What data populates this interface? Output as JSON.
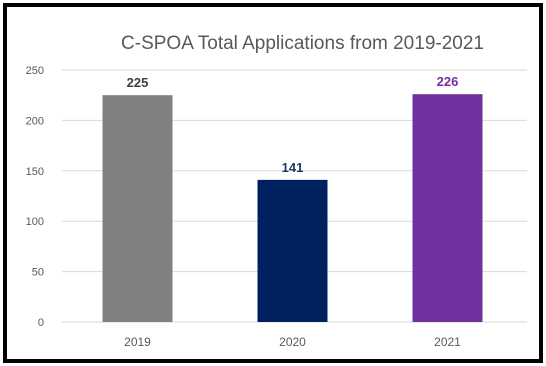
{
  "colors": {
    "frame": "#000000",
    "grid": "#d9d9d9",
    "text": "#595959"
  },
  "chart_data": {
    "type": "bar",
    "title": "C-SPOA Total Applications from 2019-2021",
    "xlabel": "",
    "ylabel": "",
    "categories": [
      "2019",
      "2020",
      "2021"
    ],
    "values": [
      225,
      141,
      226
    ],
    "bar_colors": [
      "#808080",
      "#002060",
      "#7030a0"
    ],
    "label_colors": [
      "#404040",
      "#1f3864",
      "#7030a0"
    ],
    "ylim": [
      0,
      250
    ],
    "yticks": [
      0,
      50,
      100,
      150,
      200,
      250
    ],
    "grid": true,
    "legend": "none",
    "data_labels": true
  }
}
